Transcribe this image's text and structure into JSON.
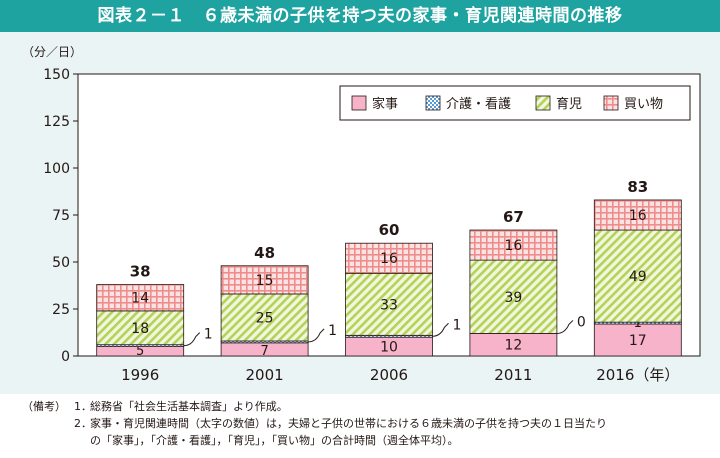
{
  "title": "図表２－１　６歳未満の子供を持つ夫の家事・育児関連時間の推移",
  "colors": {
    "title_bg": "#1fa3a0",
    "panel_bg": "#eaf4f4"
  },
  "chart_data": {
    "type": "bar",
    "stacked": true,
    "ylabel": "（分／日）",
    "xlabel_suffix": "（年）",
    "ylim": [
      0,
      150
    ],
    "yticks": [
      0,
      25,
      50,
      75,
      100,
      125,
      150
    ],
    "categories": [
      "1996",
      "2001",
      "2006",
      "2011",
      "2016"
    ],
    "series": [
      {
        "name": "家事",
        "values": [
          5,
          7,
          10,
          12,
          17
        ],
        "color": "#f5a3bf",
        "pattern": "solid"
      },
      {
        "name": "介護・看護",
        "values": [
          1,
          1,
          1,
          0,
          1
        ],
        "color": "#5b9bd5",
        "pattern": "checker"
      },
      {
        "name": "育児",
        "values": [
          18,
          25,
          33,
          39,
          49
        ],
        "color": "#b9d65a",
        "pattern": "diagonal"
      },
      {
        "name": "買い物",
        "values": [
          14,
          15,
          16,
          16,
          16
        ],
        "color": "#ef8a8a",
        "pattern": "grid"
      }
    ],
    "totals": [
      38,
      48,
      60,
      67,
      83
    ],
    "legend_position": "top-right",
    "grid": false
  },
  "notes": {
    "label": "（備考）",
    "items": [
      {
        "num": "1．",
        "text": "総務省「社会生活基本調査」より作成。"
      },
      {
        "num": "2．",
        "text": "家事・育児関連時間（太字の数値）は，夫婦と子供の世帯における６歳未満の子供を持つ夫の１日当たり"
      }
    ],
    "continuation": "の「家事」，「介護・看護」，「育児」，「買い物」の合計時間（週全体平均）。"
  }
}
